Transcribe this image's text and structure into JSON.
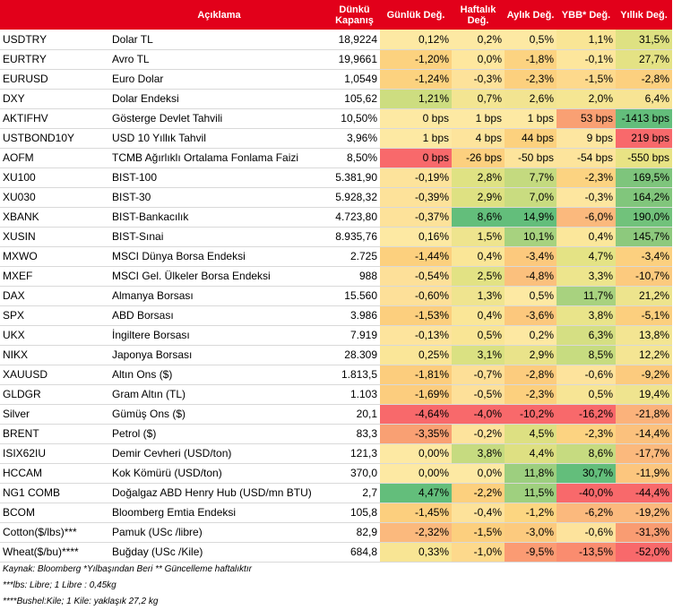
{
  "header": {
    "code": "",
    "description": "Açıklama",
    "close": "Dünkü Kapanış",
    "daily": "Günlük Değ.",
    "weekly": "Haftalık Değ.",
    "monthly": "Aylık Değ.",
    "ytd": "YBB* Değ.",
    "yearly": "Yıllık Değ."
  },
  "rows": [
    {
      "code": "USDTRY",
      "desc": "Dolar TL",
      "close": "18,9224",
      "daily": "0,12%",
      "weekly": "0,2%",
      "monthly": "0,5%",
      "ytd": "1,1%",
      "yearly": "31,5%",
      "colors": [
        "#fde9a3",
        "#fde9a3",
        "#fde9a3",
        "#f9e595",
        "#dee182"
      ]
    },
    {
      "code": "EURTRY",
      "desc": "Avro TL",
      "close": "19,9661",
      "daily": "-1,20%",
      "weekly": "0,0%",
      "monthly": "-1,8%",
      "ytd": "-0,1%",
      "yearly": "27,7%",
      "colors": [
        "#fcd27f",
        "#fee79e",
        "#fcd381",
        "#fde69c",
        "#e4e284"
      ]
    },
    {
      "code": "EURUSD",
      "desc": "Euro Dolar",
      "close": "1,0549",
      "daily": "-1,24%",
      "weekly": "-0,3%",
      "monthly": "-2,3%",
      "ytd": "-1,5%",
      "yearly": "-2,8%",
      "colors": [
        "#fcd27f",
        "#fde29a",
        "#fcd07e",
        "#fdd98c",
        "#fcd07f"
      ]
    },
    {
      "code": "DXY",
      "desc": "Dolar Endeksi",
      "close": "105,62",
      "daily": "1,21%",
      "weekly": "0,7%",
      "monthly": "2,6%",
      "ytd": "2,0%",
      "yearly": "6,4%",
      "colors": [
        "#cddd80",
        "#f3e592",
        "#f2e491",
        "#f5e693",
        "#f7e494"
      ]
    },
    {
      "code": "AKTIFHV",
      "desc": "Gösterge Devlet Tahvili",
      "close": "10,50%",
      "daily": "0 bps",
      "weekly": "1 bps",
      "monthly": "1 bps",
      "ytd": "53 bps",
      "yearly": "-1413 bps",
      "colors": [
        "#fde9a3",
        "#fde9a3",
        "#fde9a3",
        "#f9a073",
        "#63be7b"
      ]
    },
    {
      "code": "USTBOND10Y",
      "desc": "USD 10 Yıllık Tahvil",
      "close": "3,96%",
      "daily": "1 bps",
      "weekly": "4 bps",
      "monthly": "44 bps",
      "ytd": "9 bps",
      "yearly": "219 bps",
      "colors": [
        "#fde9a3",
        "#fde49c",
        "#fcd17e",
        "#fde6a0",
        "#f8696b"
      ]
    },
    {
      "code": "AOFM",
      "desc": "TCMB Ağırlıklı Ortalama Fonlama Faizi",
      "close": "8,50%",
      "daily": "0 bps",
      "weekly": "-26 bps",
      "monthly": "-50 bps",
      "ytd": "-54 bps",
      "yearly": "-550 bps",
      "colors": [
        "#f8696b",
        "#fcd07f",
        "#fde49c",
        "#fde49c",
        "#e8e384"
      ]
    },
    {
      "code": "XU100",
      "desc": "BIST-100",
      "close": "5.381,90",
      "daily": "-0,19%",
      "weekly": "2,8%",
      "monthly": "7,7%",
      "ytd": "-2,3%",
      "yearly": "169,5%",
      "colors": [
        "#fde39b",
        "#dfe283",
        "#c4da7f",
        "#fcd381",
        "#7ec57c"
      ]
    },
    {
      "code": "XU030",
      "desc": "BIST-30",
      "close": "5.928,32",
      "daily": "-0,39%",
      "weekly": "2,9%",
      "monthly": "7,0%",
      "ytd": "-0,3%",
      "yearly": "164,2%",
      "colors": [
        "#fde29a",
        "#dee182",
        "#c9dc80",
        "#fde69f",
        "#81c67c"
      ]
    },
    {
      "code": "XBANK",
      "desc": "BIST-Bankacılık",
      "close": "4.723,80",
      "daily": "-0,37%",
      "weekly": "8,6%",
      "monthly": "14,9%",
      "ytd": "-6,0%",
      "yearly": "190,0%",
      "colors": [
        "#fde29a",
        "#63be7b",
        "#63be7b",
        "#fbb97d",
        "#71c27b"
      ]
    },
    {
      "code": "XUSIN",
      "desc": "BIST-Sınai",
      "close": "8.935,76",
      "daily": "0,16%",
      "weekly": "1,5%",
      "monthly": "10,1%",
      "ytd": "0,4%",
      "yearly": "145,7%",
      "colors": [
        "#fde9a3",
        "#eee48e",
        "#a7d27f",
        "#fbe79b",
        "#8dc97d"
      ]
    },
    {
      "code": "MXWO",
      "desc": "MSCI Dünya Borsa Endeksi",
      "close": "2.725",
      "daily": "-1,44%",
      "weekly": "0,4%",
      "monthly": "-3,4%",
      "ytd": "4,7%",
      "yearly": "-3,4%",
      "colors": [
        "#fcd07e",
        "#fae697",
        "#fcc97d",
        "#e4e385",
        "#fcd07f"
      ]
    },
    {
      "code": "MXEF",
      "desc": "MSCI Gel. Ülkeler Borsa Endeksi",
      "close": "988",
      "daily": "-0,54%",
      "weekly": "2,5%",
      "monthly": "-4,8%",
      "ytd": "3,3%",
      "yearly": "-10,7%",
      "colors": [
        "#fde099",
        "#e2e284",
        "#fbc07d",
        "#ede58d",
        "#fcca7e"
      ]
    },
    {
      "code": "DAX",
      "desc": "Almanya Borsası",
      "close": "15.560",
      "daily": "-0,60%",
      "weekly": "1,3%",
      "monthly": "0,5%",
      "ytd": "11,7%",
      "yearly": "21,2%",
      "colors": [
        "#fde099",
        "#efe48f",
        "#fde9a3",
        "#a8d27f",
        "#ede48d"
      ]
    },
    {
      "code": "SPX",
      "desc": "ABD Borsası",
      "close": "3.986",
      "daily": "-1,53%",
      "weekly": "0,4%",
      "monthly": "-3,6%",
      "ytd": "3,8%",
      "yearly": "-5,1%",
      "colors": [
        "#fccf7e",
        "#fae697",
        "#fcc87d",
        "#e9e48a",
        "#fccf7e"
      ]
    },
    {
      "code": "UKX",
      "desc": "İngiltere Borsası",
      "close": "7.919",
      "daily": "-0,13%",
      "weekly": "0,5%",
      "monthly": "0,2%",
      "ytd": "6,3%",
      "yearly": "13,8%",
      "colors": [
        "#fde49d",
        "#f9e595",
        "#fde8a2",
        "#d5df83",
        "#f3e592"
      ]
    },
    {
      "code": "NIKX",
      "desc": "Japonya Borsası",
      "close": "28.309",
      "daily": "0,25%",
      "weekly": "3,1%",
      "monthly": "2,9%",
      "ytd": "8,5%",
      "yearly": "12,2%",
      "colors": [
        "#fae698",
        "#dae182",
        "#e9e38a",
        "#c7dc80",
        "#f4e593"
      ]
    },
    {
      "code": "XAUUSD",
      "desc": "Altın Ons ($)",
      "close": "1.813,5",
      "daily": "-1,81%",
      "weekly": "-0,7%",
      "monthly": "-2,8%",
      "ytd": "-0,6%",
      "yearly": "-9,2%",
      "colors": [
        "#fccd7d",
        "#fddf97",
        "#fccc7e",
        "#fde39c",
        "#fccb7e"
      ]
    },
    {
      "code": "GLDGR",
      "desc": "Gram Altın (TL)",
      "close": "1.103",
      "daily": "-1,69%",
      "weekly": "-0,5%",
      "monthly": "-2,3%",
      "ytd": "0,5%",
      "yearly": "19,4%",
      "colors": [
        "#fccd7e",
        "#fde099",
        "#fcd07e",
        "#f7e595",
        "#efe48f"
      ]
    },
    {
      "code": "Silver",
      "desc": "Gümüş Ons ($)",
      "close": "20,1",
      "daily": "-4,64%",
      "weekly": "-4,0%",
      "monthly": "-10,2%",
      "ytd": "-16,2%",
      "yearly": "-21,8%",
      "colors": [
        "#f8696b",
        "#f8696b",
        "#f8696b",
        "#f8696b",
        "#fbb27b"
      ]
    },
    {
      "code": "BRENT",
      "desc": "Petrol ($)",
      "close": "83,3",
      "daily": "-3,35%",
      "weekly": "-0,2%",
      "monthly": "4,5%",
      "ytd": "-2,3%",
      "yearly": "-14,4%",
      "colors": [
        "#f9a073",
        "#fde39c",
        "#dde082",
        "#fcd381",
        "#fbc17d"
      ]
    },
    {
      "code": "ISIX62IU",
      "desc": "Demir Cevheri (USD/ton)",
      "close": "121,3",
      "daily": "0,00%",
      "weekly": "3,8%",
      "monthly": "4,4%",
      "ytd": "8,6%",
      "yearly": "-17,7%",
      "colors": [
        "#fde9a3",
        "#c6db80",
        "#dee082",
        "#c6db80",
        "#fbb97d"
      ]
    },
    {
      "code": "HCCAM",
      "desc": "Kok Kömürü (USD/ton)",
      "close": "370,0",
      "daily": "0,00%",
      "weekly": "0,0%",
      "monthly": "11,8%",
      "ytd": "30,7%",
      "yearly": "-11,9%",
      "colors": [
        "#fde9a3",
        "#fde9a3",
        "#9dcf7f",
        "#63be7b",
        "#fcc67e"
      ]
    },
    {
      "code": "NG1 COMB",
      "desc": "Doğalgaz ABD Henry Hub (USD/mn BTU)",
      "close": "2,7",
      "daily": "4,47%",
      "weekly": "-2,2%",
      "monthly": "11,5%",
      "ytd": "-40,0%",
      "yearly": "-44,4%",
      "colors": [
        "#63be7b",
        "#fcd07e",
        "#9fd07f",
        "#f8696b",
        "#f8696b"
      ]
    },
    {
      "code": "BCOM",
      "desc": "Bloomberg Emtia Endeksi",
      "close": "105,8",
      "daily": "-1,45%",
      "weekly": "-0,4%",
      "monthly": "-1,2%",
      "ytd": "-6,2%",
      "yearly": "-19,2%",
      "colors": [
        "#fccf7e",
        "#fde29a",
        "#fcd681",
        "#fbb97d",
        "#fbb97d"
      ]
    },
    {
      "code": "Cotton($/lbs)***",
      "desc": "Pamuk (USc /libre)",
      "close": "82,9",
      "daily": "-2,32%",
      "weekly": "-1,5%",
      "monthly": "-3,0%",
      "ytd": "-0,6%",
      "yearly": "-31,3%",
      "colors": [
        "#fbb97d",
        "#fccf7e",
        "#fcca7e",
        "#fde39c",
        "#f99c72"
      ]
    },
    {
      "code": "Wheat($/bu)****",
      "desc": "Buğday (USc /Kile)",
      "close": "684,8",
      "daily": "0,33%",
      "weekly": "-1,0%",
      "monthly": "-9,5%",
      "ytd": "-13,5%",
      "yearly": "-52,0%",
      "colors": [
        "#f8e594",
        "#fdd98c",
        "#fb9b73",
        "#fa8c6f",
        "#f8696b"
      ]
    }
  ],
  "notes": [
    "Kaynak: Bloomberg *Yılbaşından Beri  ** Güncelleme haftalıktır",
    "***lbs: Libre; 1 Libre : 0,45kg",
    "****Bushel:Kile; 1 Kile: yaklaşık 27,2 kg"
  ]
}
